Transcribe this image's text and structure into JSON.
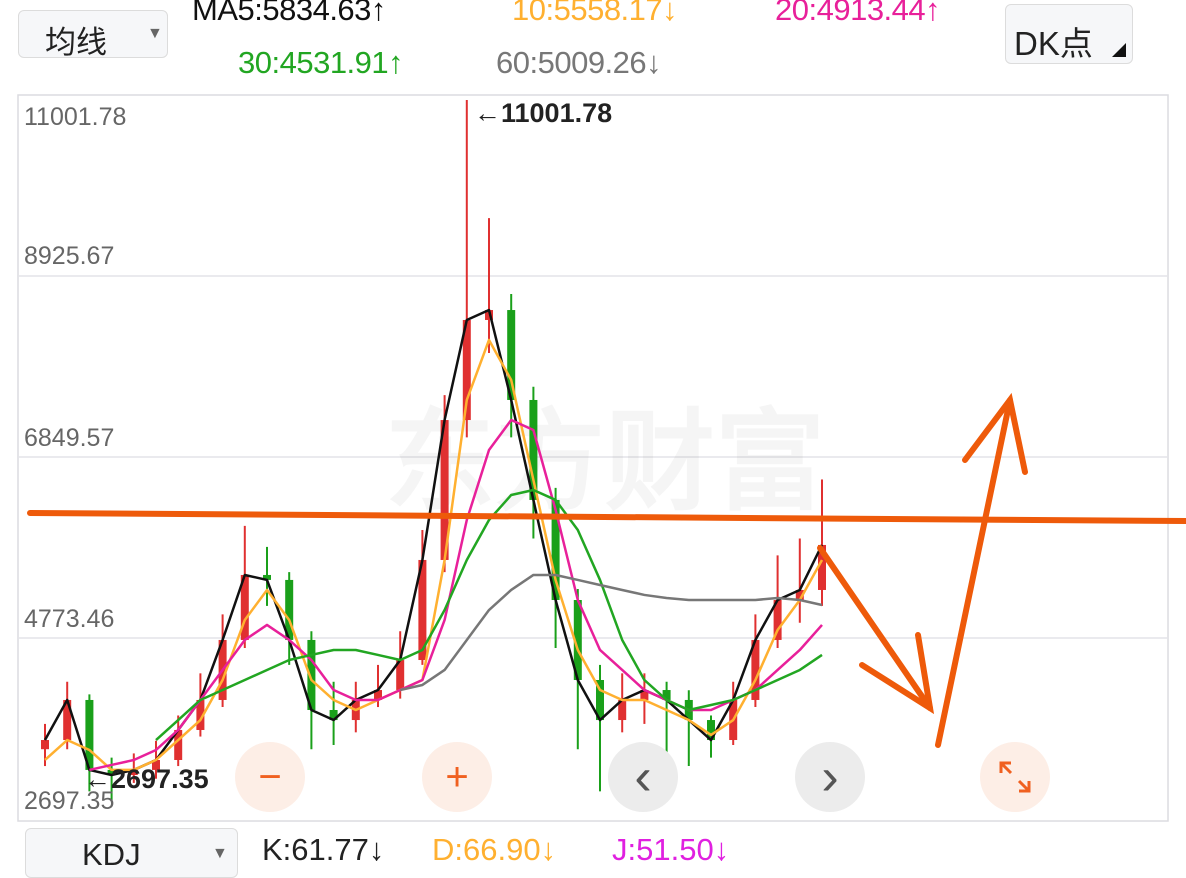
{
  "header": {
    "ma_selector_label": "均线",
    "ma5": "MA5:5834.63",
    "ma5_arrow": "↑",
    "ma10": "10:5558.17",
    "ma10_arrow": "↓",
    "ma20": "20:4913.44",
    "ma20_arrow": "↑",
    "ma30": "30:4531.91",
    "ma30_arrow": "↑",
    "ma60": "60:5009.26",
    "ma60_arrow": "↓",
    "dk_button_label": "DK点"
  },
  "watermark": "东方财富",
  "controls": {
    "zoom_out": "−",
    "zoom_in": "+",
    "prev": "‹",
    "next": "›",
    "expand_icon": "expand-arrows"
  },
  "indicator": {
    "selector_label": "KDJ",
    "k": "K:61.77↓",
    "d": "D:66.90↓",
    "j": "J:51.50↓"
  },
  "colors": {
    "up": "#e03030",
    "down": "#1aa01a",
    "ma5": "#111111",
    "ma10": "#ffb030",
    "ma20": "#e8209a",
    "ma30": "#22a622",
    "ma60": "#777777",
    "annotation": "#ee5a0a"
  },
  "chart_data": {
    "type": "candlestick",
    "y_ticks": [
      "11001.78",
      "8925.67",
      "6849.57",
      "4773.46",
      "2697.35"
    ],
    "ylim": [
      2697.35,
      11001.78
    ],
    "max_label": "←11001.78",
    "min_label": "←2697.35",
    "grid": true,
    "candles": [
      [
        3300,
        3600,
        3100,
        3409
      ],
      [
        3409,
        4100,
        3300,
        3884
      ],
      [
        3884,
        3950,
        2800,
        3054
      ],
      [
        3054,
        3200,
        2697.35,
        2994
      ],
      [
        2994,
        3250,
        2900,
        3054
      ],
      [
        3054,
        3400,
        2950,
        3172
      ],
      [
        3172,
        3700,
        3100,
        3528
      ],
      [
        3528,
        4200,
        3450,
        3884
      ],
      [
        3884,
        4900,
        3800,
        4596
      ],
      [
        4596,
        5950,
        4500,
        5367
      ],
      [
        5367,
        5700,
        5000,
        5308
      ],
      [
        5308,
        5400,
        4300,
        4596
      ],
      [
        4596,
        4700,
        3300,
        3765
      ],
      [
        3765,
        4100,
        3350,
        3646
      ],
      [
        3646,
        4100,
        3500,
        3884
      ],
      [
        3884,
        4300,
        3800,
        4002
      ],
      [
        4002,
        4700,
        3900,
        4358
      ],
      [
        4358,
        5900,
        4300,
        5545
      ],
      [
        5545,
        7500,
        5400,
        7205
      ],
      [
        7205,
        11001.78,
        7000,
        8392
      ],
      [
        8392,
        9600,
        8000,
        8510
      ],
      [
        8510,
        8700,
        7000,
        7443
      ],
      [
        7443,
        7600,
        5800,
        6257
      ],
      [
        6257,
        6400,
        4500,
        5070
      ],
      [
        5070,
        5200,
        3300,
        4121
      ],
      [
        4121,
        4300,
        2800,
        3646
      ],
      [
        3646,
        4200,
        3500,
        3884
      ],
      [
        3884,
        4200,
        3600,
        4002
      ],
      [
        4002,
        4100,
        3200,
        3884
      ],
      [
        3884,
        4000,
        3100,
        3646
      ],
      [
        3646,
        3700,
        3200,
        3409
      ],
      [
        3409,
        4100,
        3350,
        3884
      ],
      [
        3884,
        4900,
        3800,
        4596
      ],
      [
        4596,
        5600,
        4500,
        5070
      ],
      [
        5070,
        5800,
        4800,
        5189
      ],
      [
        5189,
        6500,
        5000,
        5723
      ]
    ],
    "series": [
      {
        "name": "MA5",
        "values": [
          3409,
          3884,
          3054,
          2994,
          3054,
          3172,
          3528,
          3884,
          4596,
          5367,
          5308,
          4596,
          3765,
          3646,
          3884,
          4002,
          4358,
          5545,
          7205,
          8392,
          8510,
          7443,
          6257,
          5070,
          4121,
          3646,
          3884,
          4002,
          3884,
          3646,
          3409,
          3884,
          4596,
          5070,
          5189,
          5723
        ]
      },
      {
        "name": "10",
        "values": [
          3172,
          3409,
          3291,
          3054,
          3054,
          3172,
          3409,
          3646,
          4121,
          4833,
          5189,
          4833,
          4121,
          3884,
          3765,
          3884,
          4002,
          4121,
          5545,
          7443,
          8155,
          7680,
          6494,
          5308,
          4477,
          4002,
          3884,
          3884,
          3765,
          3646,
          3469,
          3646,
          4121,
          4714,
          5070,
          5545
        ]
      },
      {
        "name": "20",
        "values": [
          null,
          null,
          3054,
          3113,
          3172,
          3291,
          3528,
          3884,
          4240,
          4596,
          4774,
          4596,
          4358,
          4002,
          3884,
          3884,
          4002,
          4121,
          4833,
          6019,
          6850,
          7205,
          7087,
          6138,
          5070,
          4477,
          4240,
          4002,
          3884,
          3765,
          3765,
          3884,
          4002,
          4240,
          4477,
          4774
        ]
      },
      {
        "name": "30",
        "values": [
          null,
          null,
          null,
          null,
          null,
          3409,
          3646,
          3884,
          4002,
          4121,
          4240,
          4358,
          4418,
          4477,
          4477,
          4418,
          4358,
          4477,
          4951,
          5545,
          6019,
          6316,
          6375,
          6257,
          5901,
          5308,
          4596,
          4121,
          3884,
          3765,
          3824,
          3884,
          4002,
          4121,
          4240,
          4418
        ]
      },
      {
        "name": "60",
        "values": [
          null,
          null,
          null,
          null,
          null,
          null,
          null,
          null,
          null,
          null,
          null,
          null,
          null,
          null,
          null,
          null,
          4002,
          4062,
          4240,
          4596,
          4951,
          5189,
          5367,
          5367,
          5308,
          5248,
          5189,
          5130,
          5094,
          5070,
          5070,
          5070,
          5070,
          5094,
          5070,
          5011
        ]
      }
    ]
  }
}
